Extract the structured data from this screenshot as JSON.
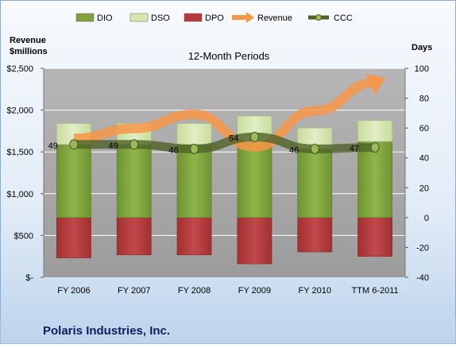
{
  "chart_data": {
    "type": "bar",
    "title": "12-Month Periods",
    "company": "Polaris Industries, Inc.",
    "categories": [
      "FY 2006",
      "FY 2007",
      "FY 2008",
      "FY 2009",
      "FY 2010",
      "TTM 6-2011"
    ],
    "left_axis": {
      "label_line1": "Revenue",
      "label_line2": "$millions",
      "ylim": [
        0,
        2500
      ],
      "ticks": [
        0,
        500,
        1000,
        1500,
        2000,
        2500
      ],
      "tick_labels": [
        "$-",
        "$500",
        "$1,000",
        "$1,500",
        "$2,000",
        "$2,500"
      ]
    },
    "right_axis": {
      "label": "Days",
      "ylim": [
        -40,
        100
      ],
      "ticks": [
        -40,
        -20,
        0,
        20,
        40,
        60,
        80,
        100
      ],
      "tick_labels": [
        "-40",
        "-20",
        "0",
        "20",
        "40",
        "60",
        "80",
        "100"
      ]
    },
    "legend": {
      "position": "top",
      "items": [
        {
          "label": "DIO",
          "type": "bar",
          "color": "#7fa33a"
        },
        {
          "label": "DSO",
          "type": "bar",
          "color": "#d6e6ae"
        },
        {
          "label": "DPO",
          "type": "bar",
          "color": "#b5383a"
        },
        {
          "label": "Revenue",
          "type": "arrow",
          "color": "#f79646"
        },
        {
          "label": "CCC",
          "type": "line",
          "color": "#4f6228"
        }
      ]
    },
    "series": [
      {
        "name": "DIO",
        "axis": "right",
        "values": [
          49,
          49,
          49,
          51,
          46,
          51
        ]
      },
      {
        "name": "DSO",
        "axis": "right",
        "values": [
          14,
          14,
          14,
          17,
          14,
          14
        ]
      },
      {
        "name": "DPO",
        "axis": "right",
        "values": [
          -27,
          -25,
          -25,
          -31,
          -23,
          -26
        ]
      },
      {
        "name": "Revenue",
        "axis": "left",
        "values": [
          1660,
          1780,
          1950,
          1560,
          1990,
          2330
        ]
      },
      {
        "name": "CCC",
        "axis": "right",
        "values": [
          49,
          49,
          46,
          54,
          46,
          47
        ]
      }
    ],
    "ccc_labels": [
      "49",
      "49",
      "46",
      "54",
      "46",
      "47"
    ],
    "grid": true
  },
  "colors": {
    "background_top": "#f4f8fc",
    "background_bottom": "#c5d9ee",
    "plot_fill": "#a8a8a8",
    "gridline": "#ffffff",
    "title_bar": "#ffffff"
  }
}
